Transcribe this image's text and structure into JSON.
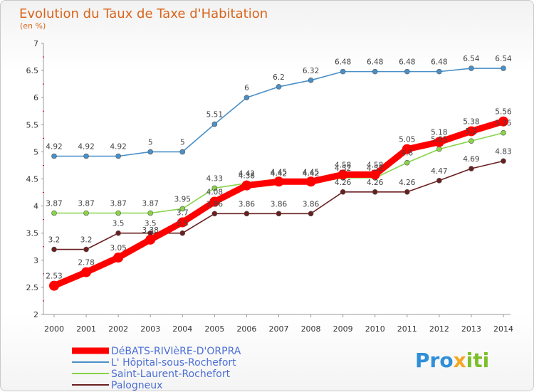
{
  "chart_data": {
    "type": "line",
    "title": "Evolution du Taux de Taxe d'Habitation",
    "subtitle": "(en %)",
    "x": [
      "2000",
      "2001",
      "2002",
      "2003",
      "2004",
      "2005",
      "2006",
      "2007",
      "2008",
      "2009",
      "2010",
      "2011",
      "2012",
      "2013",
      "2014"
    ],
    "ylim": [
      2,
      7
    ],
    "yticks": [
      "2",
      "2.5",
      "3",
      "3.5",
      "4",
      "4.5",
      "5",
      "5.5",
      "6",
      "6.5",
      "7"
    ],
    "grid": false,
    "legend_position": "bottom-left",
    "series": [
      {
        "name": "DéBATS-RIVIèRE-D'ORPRA",
        "color": "#ff0000",
        "values": [
          2.53,
          2.78,
          3.05,
          3.38,
          3.7,
          4.08,
          4.38,
          4.45,
          4.45,
          4.58,
          4.58,
          5.05,
          5.18,
          5.38,
          5.56
        ],
        "labels": [
          "2.53",
          "2.78",
          "3.05",
          "3.38",
          "3.7",
          "4.08",
          "4.38",
          "4.45",
          "4.45",
          "4.58",
          "4.58",
          "5.05",
          "5.18",
          "5.38",
          "5.56"
        ]
      },
      {
        "name": "L' Hôpital-sous-Rochefort",
        "color": "#4a90c8",
        "values": [
          4.92,
          4.92,
          4.92,
          5,
          5,
          5.51,
          6,
          6.2,
          6.32,
          6.48,
          6.48,
          6.48,
          6.48,
          6.54,
          6.54
        ],
        "labels": [
          "4.92",
          "4.92",
          "4.92",
          "5",
          "5",
          "5.51",
          "6",
          "6.2",
          "6.32",
          "6.48",
          "6.48",
          "6.48",
          "6.48",
          "6.54",
          "6.54"
        ]
      },
      {
        "name": "Saint-Laurent-Rochefort",
        "color": "#88d44a",
        "values": [
          3.87,
          3.87,
          3.87,
          3.87,
          3.95,
          4.33,
          4.42,
          4.42,
          4.42,
          4.52,
          4.52,
          4.8,
          5.05,
          5.2,
          5.35
        ],
        "labels": [
          "3.87",
          "3.87",
          "3.87",
          "3.87",
          "3.95",
          "4.33",
          "4.42",
          "4.42",
          "4.42",
          "4.52",
          "4.52",
          "4.8",
          "5.05",
          "5.2",
          "5.35"
        ]
      },
      {
        "name": "Palogneux",
        "color": "#6a1f1f",
        "values": [
          3.2,
          3.2,
          3.5,
          3.5,
          3.5,
          3.86,
          3.86,
          3.86,
          3.86,
          4.26,
          4.26,
          4.26,
          4.47,
          4.69,
          4.83
        ],
        "labels": [
          "3.2",
          "3.2",
          "3.5",
          "3.5",
          "3.5",
          "3.86",
          "3.86",
          "3.86",
          "3.86",
          "4.26",
          "4.26",
          "4.26",
          "4.47",
          "4.69",
          "4.83"
        ]
      }
    ]
  },
  "logo": {
    "p1": "Pro",
    "p2": "x",
    "p3": "iti"
  }
}
